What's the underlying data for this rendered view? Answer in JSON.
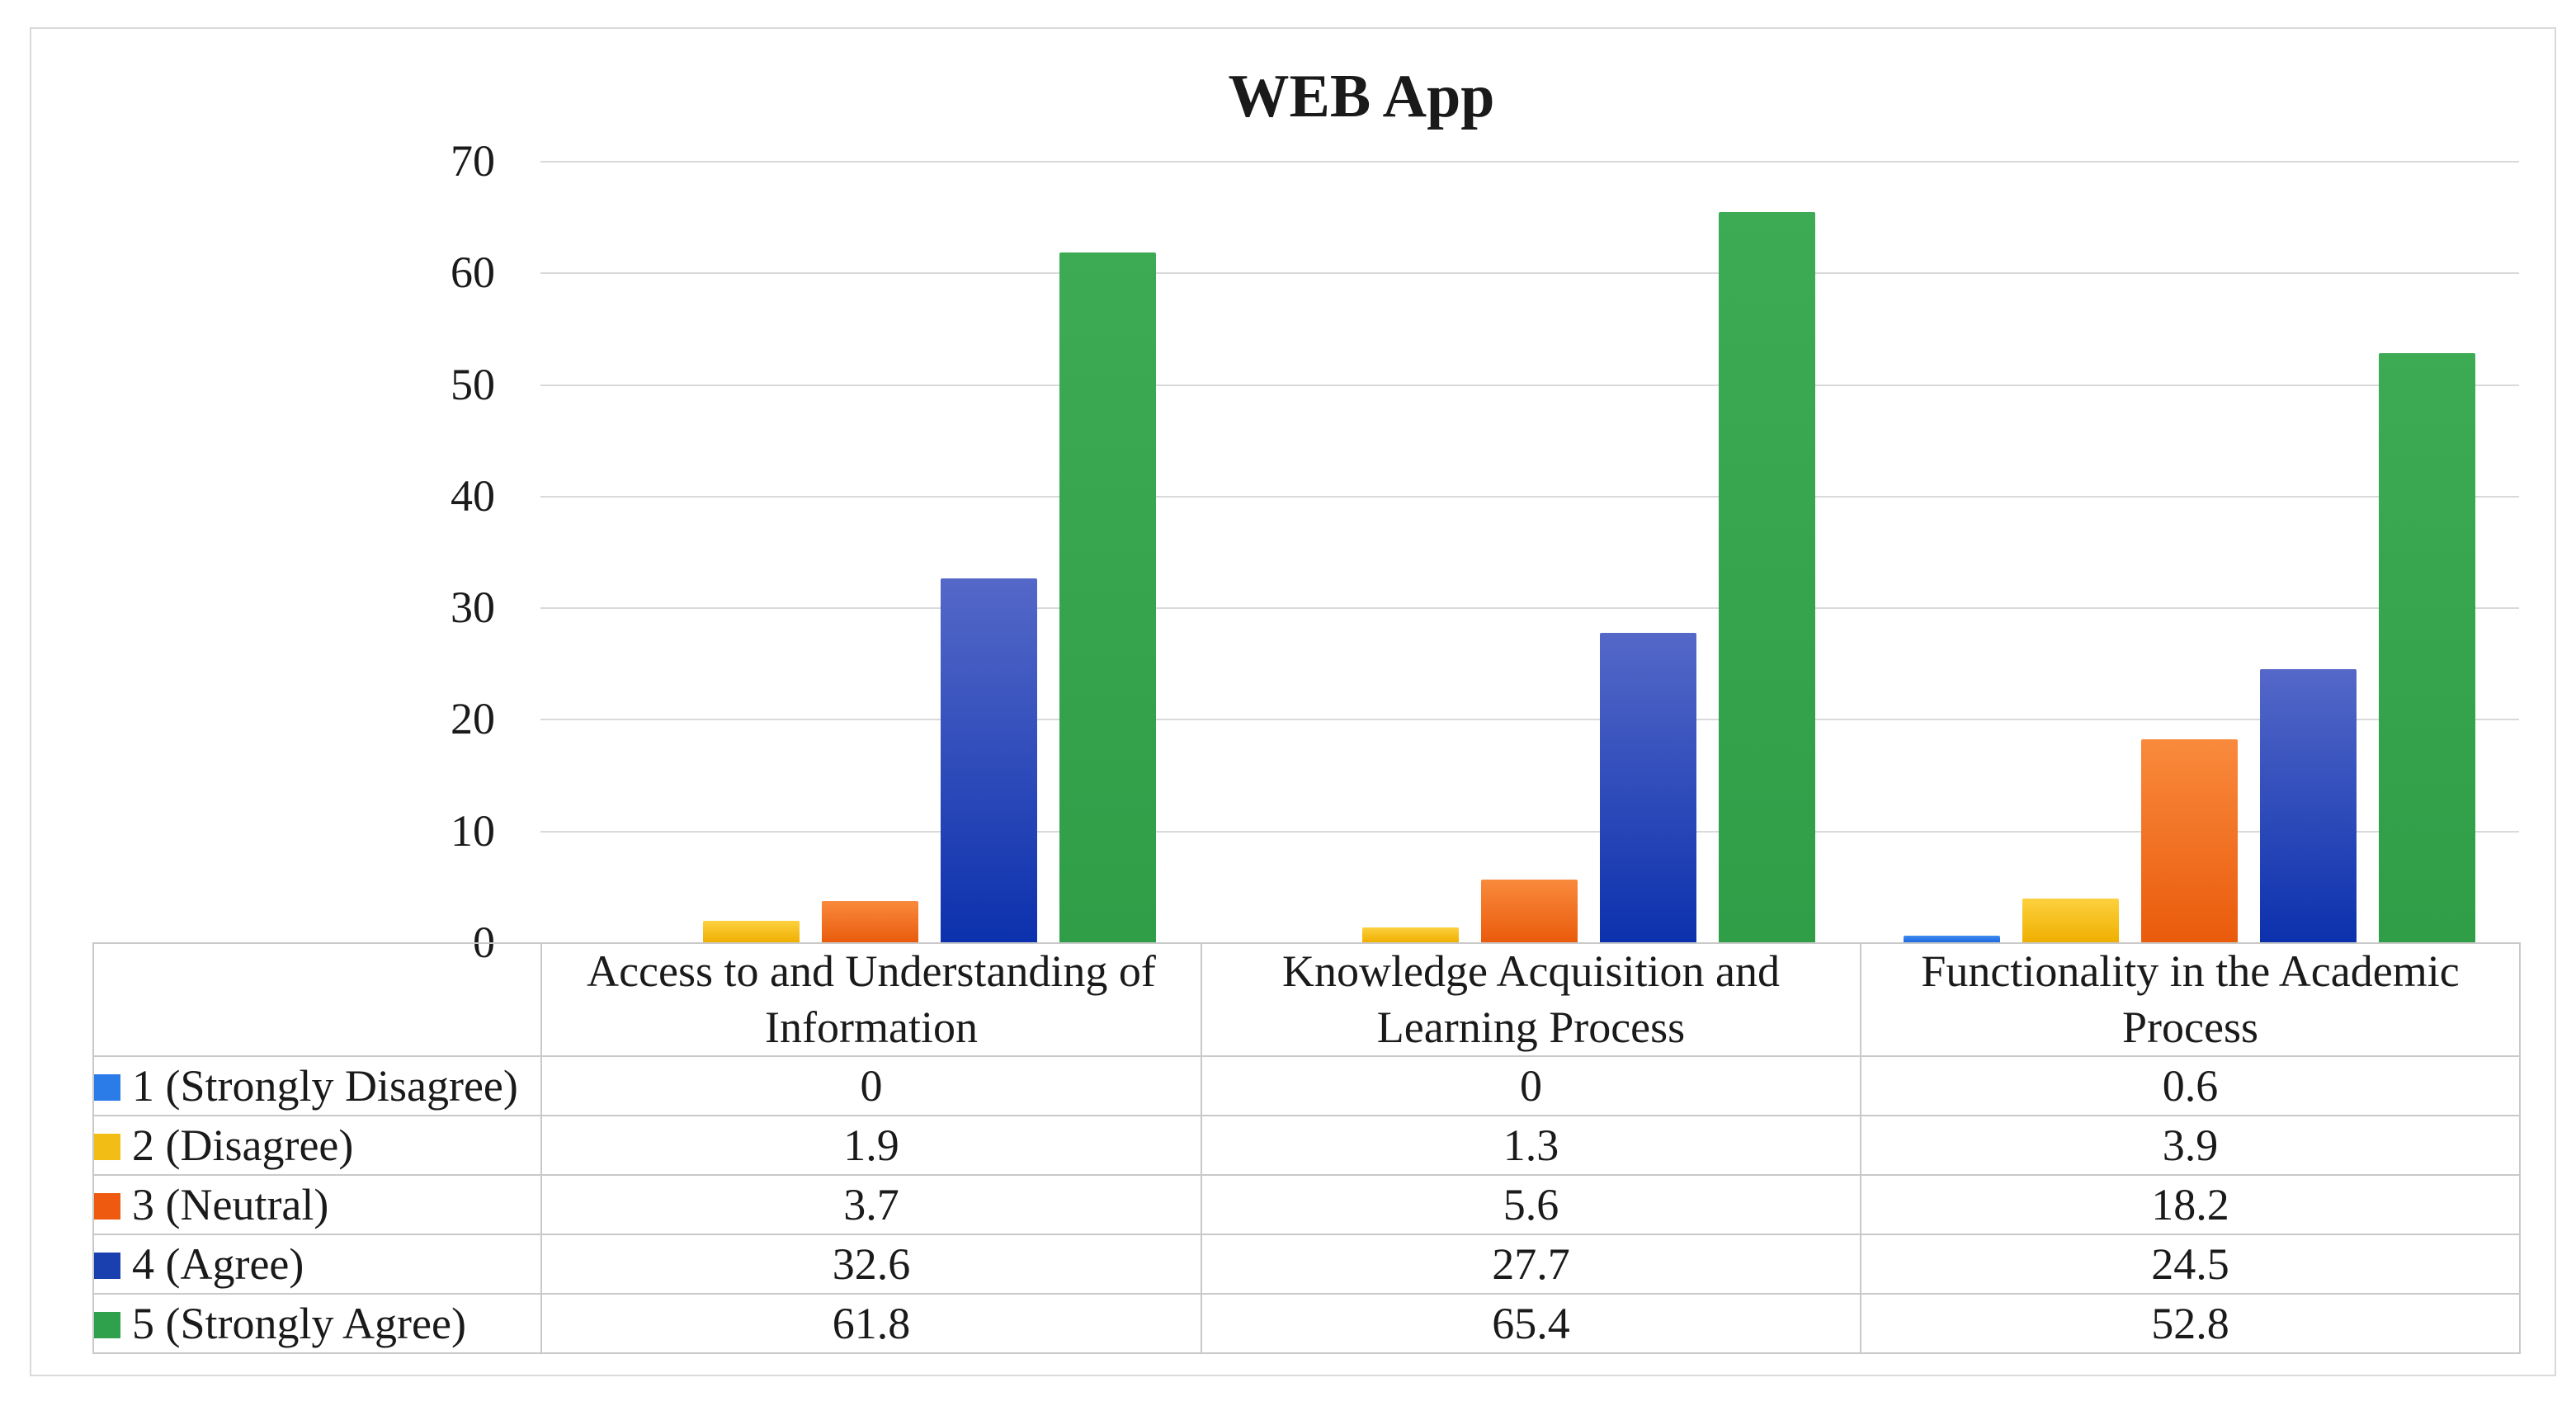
{
  "figure": {
    "background": "#ffffff",
    "frame_border_color": "#d9d9d9",
    "gridline_color": "#d9d9d9",
    "table_border_color": "#c9c9c9"
  },
  "chart_data": {
    "type": "bar",
    "title": "WEB App",
    "categories": [
      "Access to and Understanding of Information",
      "Knowledge Acquisition and Learning Process",
      "Functionality in the Academic Process"
    ],
    "series": [
      {
        "name": "1 (Strongly Disagree)",
        "swatch": "#2b7ce9",
        "color_top": "#3f8cf0",
        "color_bottom": "#1e6ade",
        "values": [
          0,
          0,
          0.6
        ]
      },
      {
        "name": "2 (Disagree)",
        "swatch": "#f2be16",
        "color_top": "#fdd13f",
        "color_bottom": "#efaf00",
        "values": [
          1.9,
          1.3,
          3.9
        ]
      },
      {
        "name": "3 (Neutral)",
        "swatch": "#ee5a10",
        "color_top": "#f98a3d",
        "color_bottom": "#ea5b0c",
        "values": [
          3.7,
          5.6,
          18.2
        ]
      },
      {
        "name": "4 (Agree)",
        "swatch": "#1a40b0",
        "color_top": "#5468c8",
        "color_bottom": "#0c31ad",
        "values": [
          32.6,
          27.7,
          24.5
        ]
      },
      {
        "name": "5 (Strongly Agree)",
        "swatch": "#2fa14c",
        "color_top": "#3dab53",
        "color_bottom": "#2f9e47",
        "values": [
          61.8,
          65.4,
          52.8
        ]
      }
    ],
    "ylim": [
      0,
      70
    ],
    "yticks": [
      70,
      60,
      50,
      40,
      30,
      20,
      10,
      0
    ],
    "grid": true,
    "legend_position": "data-table-left-column",
    "xlabel": "",
    "ylabel": ""
  }
}
